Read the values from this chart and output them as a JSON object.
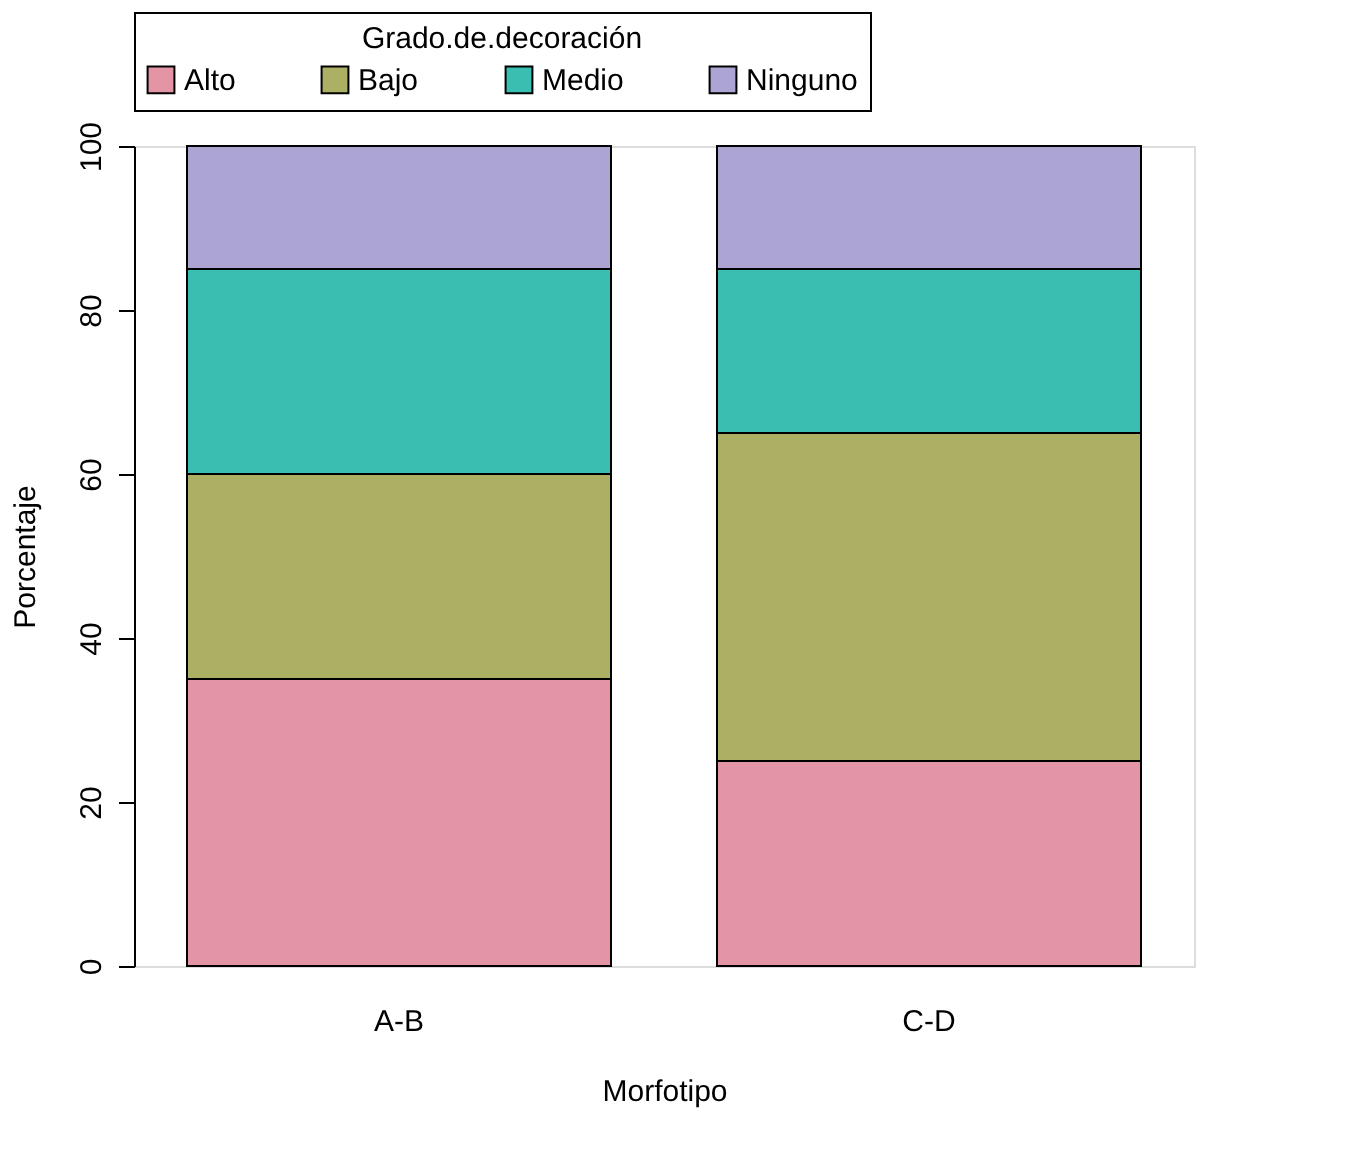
{
  "chart_data": {
    "type": "bar",
    "stacked": true,
    "xlabel": "Morfotipo",
    "ylabel": "Porcentaje",
    "legend_title": "Grado.de.decoración",
    "legend": "top",
    "grid": false,
    "categories": [
      "A-B",
      "C-D"
    ],
    "ylim": [
      0,
      100
    ],
    "yticks": [
      0,
      20,
      40,
      60,
      80,
      100
    ],
    "series": [
      {
        "name": "Alto",
        "color": "#e495a5",
        "values": [
          35,
          25
        ]
      },
      {
        "name": "Bajo",
        "color": "#abb065",
        "values": [
          25,
          40
        ]
      },
      {
        "name": "Medio",
        "color": "#39beb1",
        "values": [
          25,
          20
        ]
      },
      {
        "name": "Ninguno",
        "color": "#aca4d2",
        "values": [
          15,
          15
        ]
      }
    ]
  }
}
